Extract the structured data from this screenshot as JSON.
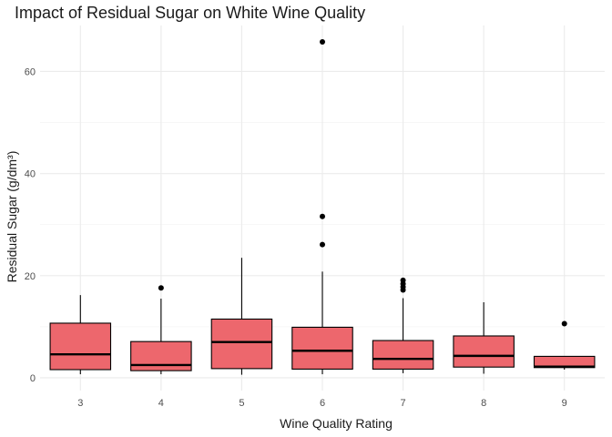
{
  "chart_data": {
    "type": "boxplot",
    "title": "Impact of Residual Sugar on White Wine Quality",
    "xlabel": "Wine Quality Rating",
    "ylabel": "Residual Sugar (g/dm³)",
    "categories": [
      "3",
      "4",
      "5",
      "6",
      "7",
      "8",
      "9"
    ],
    "ylim": [
      -2.5,
      69
    ],
    "yticks": [
      0,
      20,
      40,
      60
    ],
    "grid": true,
    "fill_color": "#ED676D",
    "boxes": [
      {
        "category": "3",
        "whisker_low": 0.7,
        "q1": 1.6,
        "median": 4.6,
        "q3": 10.7,
        "whisker_high": 16.2,
        "outliers": []
      },
      {
        "category": "4",
        "whisker_low": 0.7,
        "q1": 1.4,
        "median": 2.5,
        "q3": 7.1,
        "whisker_high": 15.5,
        "outliers": [
          17.6
        ]
      },
      {
        "category": "5",
        "whisker_low": 0.6,
        "q1": 1.8,
        "median": 7.0,
        "q3": 11.5,
        "whisker_high": 23.5,
        "outliers": []
      },
      {
        "category": "6",
        "whisker_low": 0.7,
        "q1": 1.7,
        "median": 5.3,
        "q3": 9.9,
        "whisker_high": 20.8,
        "outliers": [
          26.1,
          31.6,
          65.8
        ]
      },
      {
        "category": "7",
        "whisker_low": 0.9,
        "q1": 1.7,
        "median": 3.7,
        "q3": 7.3,
        "whisker_high": 15.6,
        "outliers": [
          17.2,
          17.8,
          18.4,
          19.1
        ]
      },
      {
        "category": "8",
        "whisker_low": 0.8,
        "q1": 2.1,
        "median": 4.3,
        "q3": 8.2,
        "whisker_high": 14.8,
        "outliers": []
      },
      {
        "category": "9",
        "whisker_low": 1.6,
        "q1": 2.0,
        "median": 2.2,
        "q3": 4.2,
        "whisker_high": 4.2,
        "outliers": [
          10.6
        ]
      }
    ]
  }
}
